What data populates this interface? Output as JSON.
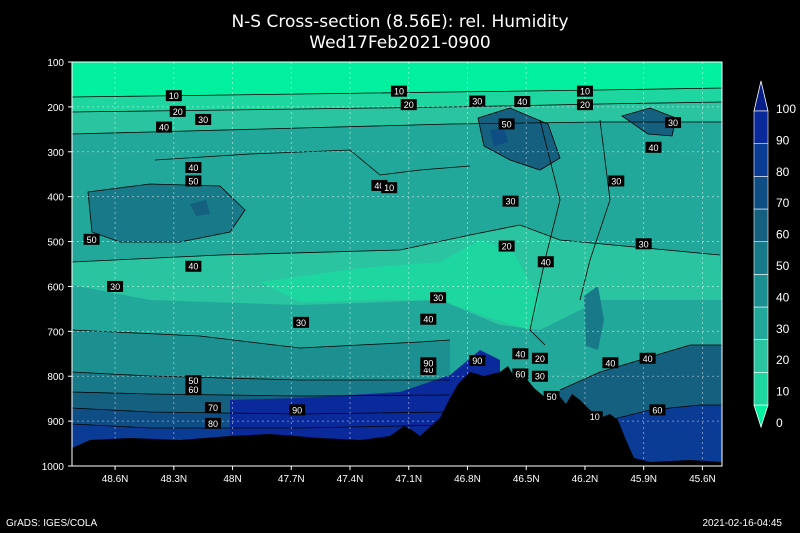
{
  "chart_data": {
    "type": "heatmap",
    "title": "N-S Cross-section (8.56E): rel. Humidity",
    "subtitle": "Wed17Feb2021-0900",
    "x_tick_labels": [
      "48.6N",
      "48.3N",
      "48N",
      "47.7N",
      "47.4N",
      "47.1N",
      "46.8N",
      "46.5N",
      "46.2N",
      "45.9N",
      "45.6N"
    ],
    "y_tick_labels": [
      "100",
      "200",
      "300",
      "400",
      "500",
      "600",
      "700",
      "800",
      "900",
      "1000"
    ],
    "ylim": [
      100,
      1000
    ],
    "y_reversed": true,
    "grid": true,
    "colorbar": {
      "tick_labels": [
        "0",
        "10",
        "20",
        "30",
        "40",
        "50",
        "60",
        "70",
        "80",
        "90",
        "100"
      ],
      "colors": [
        "#00f0a0",
        "#1ed6a0",
        "#2ac4a0",
        "#22a89a",
        "#1c9090",
        "#187a88",
        "#14607e",
        "#0e4e84",
        "#0a3c96",
        "#0a2a9c",
        "#061c86"
      ]
    },
    "contour_labels": [
      {
        "text": "10",
        "lat": 48.3,
        "p": 175
      },
      {
        "text": "20",
        "lat": 48.28,
        "p": 210
      },
      {
        "text": "30",
        "lat": 48.15,
        "p": 228
      },
      {
        "text": "40",
        "lat": 48.35,
        "p": 245
      },
      {
        "text": "10",
        "lat": 47.15,
        "p": 165
      },
      {
        "text": "20",
        "lat": 47.1,
        "p": 195
      },
      {
        "text": "30",
        "lat": 46.75,
        "p": 187
      },
      {
        "text": "40",
        "lat": 46.52,
        "p": 188
      },
      {
        "text": "10",
        "lat": 46.2,
        "p": 165
      },
      {
        "text": "20",
        "lat": 46.2,
        "p": 195
      },
      {
        "text": "50",
        "lat": 46.6,
        "p": 238
      },
      {
        "text": "30",
        "lat": 45.75,
        "p": 235
      },
      {
        "text": "40",
        "lat": 45.85,
        "p": 290
      },
      {
        "text": "40",
        "lat": 48.2,
        "p": 335
      },
      {
        "text": "50",
        "lat": 48.2,
        "p": 365
      },
      {
        "text": "40",
        "lat": 47.25,
        "p": 375
      },
      {
        "text": "10",
        "lat": 47.2,
        "p": 380
      },
      {
        "text": "30",
        "lat": 46.04,
        "p": 365
      },
      {
        "text": "30",
        "lat": 46.58,
        "p": 410
      },
      {
        "text": "50",
        "lat": 48.72,
        "p": 495
      },
      {
        "text": "40",
        "lat": 48.2,
        "p": 555
      },
      {
        "text": "20",
        "lat": 46.6,
        "p": 510
      },
      {
        "text": "40",
        "lat": 46.4,
        "p": 545
      },
      {
        "text": "30",
        "lat": 45.9,
        "p": 505
      },
      {
        "text": "30",
        "lat": 48.6,
        "p": 600
      },
      {
        "text": "30",
        "lat": 46.95,
        "p": 625
      },
      {
        "text": "30",
        "lat": 47.65,
        "p": 680
      },
      {
        "text": "40",
        "lat": 47.0,
        "p": 673
      },
      {
        "text": "40",
        "lat": 47.0,
        "p": 785
      },
      {
        "text": "50",
        "lat": 48.2,
        "p": 810
      },
      {
        "text": "60",
        "lat": 48.2,
        "p": 830
      },
      {
        "text": "70",
        "lat": 48.1,
        "p": 870
      },
      {
        "text": "80",
        "lat": 48.1,
        "p": 905
      },
      {
        "text": "90",
        "lat": 47.67,
        "p": 875
      },
      {
        "text": "90",
        "lat": 47.0,
        "p": 770
      },
      {
        "text": "90",
        "lat": 46.75,
        "p": 765
      },
      {
        "text": "40",
        "lat": 46.53,
        "p": 750
      },
      {
        "text": "20",
        "lat": 46.43,
        "p": 760
      },
      {
        "text": "60",
        "lat": 46.53,
        "p": 795
      },
      {
        "text": "30",
        "lat": 46.43,
        "p": 800
      },
      {
        "text": "50",
        "lat": 46.37,
        "p": 845
      },
      {
        "text": "40",
        "lat": 46.07,
        "p": 770
      },
      {
        "text": "40",
        "lat": 45.88,
        "p": 760
      },
      {
        "text": "60",
        "lat": 45.83,
        "p": 875
      },
      {
        "text": "10",
        "lat": 46.15,
        "p": 890
      }
    ]
  },
  "footer": {
    "credit": "GrADS: IGES/COLA",
    "timestamp": "2021-02-16-04:45"
  }
}
